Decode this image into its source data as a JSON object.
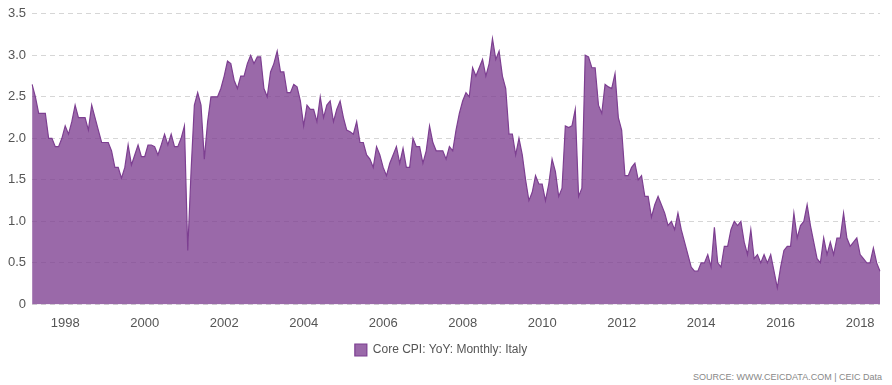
{
  "chart_data": {
    "type": "area",
    "categories": [
      null,
      null,
      null,
      null,
      null,
      null,
      null,
      null,
      null,
      null,
      "1998",
      null,
      null,
      null,
      null,
      null,
      null,
      null,
      null,
      null,
      null,
      null,
      null,
      null,
      null,
      null,
      null,
      null,
      null,
      null,
      null,
      null,
      null,
      null,
      "2000",
      null,
      null,
      null,
      null,
      null,
      null,
      null,
      null,
      null,
      null,
      null,
      null,
      null,
      null,
      null,
      null,
      null,
      null,
      null,
      null,
      null,
      null,
      null,
      "2002",
      null,
      null,
      null,
      null,
      null,
      null,
      null,
      null,
      null,
      null,
      null,
      null,
      null,
      null,
      null,
      null,
      null,
      null,
      null,
      null,
      null,
      null,
      null,
      "2004",
      null,
      null,
      null,
      null,
      null,
      null,
      null,
      null,
      null,
      null,
      null,
      null,
      null,
      null,
      null,
      null,
      null,
      null,
      null,
      null,
      null,
      null,
      null,
      "2006",
      null,
      null,
      null,
      null,
      null,
      null,
      null,
      null,
      null,
      null,
      null,
      null,
      null,
      null,
      null,
      null,
      null,
      null,
      null,
      null,
      null,
      null,
      null,
      "2008",
      null,
      null,
      null,
      null,
      null,
      null,
      null,
      null,
      null,
      null,
      null,
      null,
      null,
      null,
      null,
      null,
      null,
      null,
      null,
      null,
      null,
      null,
      null,
      "2010",
      null,
      null,
      null,
      null,
      null,
      null,
      null,
      null,
      null,
      null,
      null,
      null,
      null,
      null,
      null,
      null,
      null,
      null,
      null,
      null,
      null,
      null,
      null,
      "2012",
      null,
      null,
      null,
      null,
      null,
      null,
      null,
      null,
      null,
      null,
      null,
      null,
      null,
      null,
      null,
      null,
      null,
      null,
      null,
      null,
      null,
      null,
      null,
      "2014",
      null,
      null,
      null,
      null,
      null,
      null,
      null,
      null,
      null,
      null,
      null,
      null,
      null,
      null,
      null,
      null,
      null,
      null,
      null,
      null,
      null,
      null,
      null,
      "2016",
      null,
      null,
      null,
      null,
      null,
      null,
      null,
      null,
      null,
      null,
      null,
      null,
      null,
      null,
      null,
      null,
      null,
      null,
      null,
      null,
      null,
      null,
      null,
      "2018",
      null,
      null,
      null,
      null,
      null,
      null
    ],
    "series": [
      {
        "name": "Core CPI: YoY: Monthly: Italy",
        "color": "#7d3f91",
        "values": [
          2.65,
          2.5,
          2.3,
          2.3,
          2.3,
          2.0,
          2.0,
          1.9,
          1.9,
          2.0,
          2.15,
          2.05,
          2.2,
          2.4,
          2.25,
          2.25,
          2.25,
          2.1,
          2.4,
          2.25,
          2.1,
          1.95,
          1.95,
          1.95,
          1.85,
          1.65,
          1.65,
          1.52,
          1.65,
          1.92,
          1.68,
          1.8,
          1.92,
          1.78,
          1.78,
          1.92,
          1.92,
          1.9,
          1.8,
          1.92,
          2.05,
          1.92,
          2.05,
          1.9,
          1.9,
          2.0,
          2.15,
          0.65,
          1.6,
          2.4,
          2.55,
          2.4,
          1.75,
          2.2,
          2.5,
          2.5,
          2.5,
          2.6,
          2.75,
          2.93,
          2.9,
          2.7,
          2.6,
          2.75,
          2.75,
          2.9,
          3.0,
          2.9,
          2.98,
          2.98,
          2.6,
          2.5,
          2.8,
          2.9,
          3.05,
          2.8,
          2.8,
          2.55,
          2.55,
          2.65,
          2.62,
          2.45,
          2.15,
          2.4,
          2.35,
          2.35,
          2.2,
          2.5,
          2.25,
          2.4,
          2.45,
          2.2,
          2.35,
          2.45,
          2.25,
          2.1,
          2.08,
          2.05,
          2.2,
          1.95,
          1.95,
          1.8,
          1.75,
          1.65,
          1.9,
          1.8,
          1.65,
          1.55,
          1.7,
          1.8,
          1.9,
          1.7,
          1.88,
          1.65,
          1.65,
          2.0,
          1.9,
          1.9,
          1.7,
          1.85,
          2.15,
          1.95,
          1.85,
          1.85,
          1.85,
          1.75,
          1.9,
          1.85,
          2.1,
          2.3,
          2.45,
          2.55,
          2.5,
          2.85,
          2.75,
          2.85,
          2.95,
          2.75,
          2.9,
          3.2,
          2.95,
          3.05,
          2.75,
          2.6,
          2.05,
          2.05,
          1.8,
          2.0,
          1.8,
          1.5,
          1.25,
          1.35,
          1.55,
          1.45,
          1.45,
          1.25,
          1.45,
          1.75,
          1.6,
          1.3,
          1.4,
          2.15,
          2.13,
          2.15,
          2.35,
          1.3,
          1.4,
          3.0,
          2.98,
          2.85,
          2.85,
          2.4,
          2.3,
          2.65,
          2.62,
          2.6,
          2.78,
          2.25,
          2.1,
          1.55,
          1.55,
          1.65,
          1.7,
          1.5,
          1.55,
          1.3,
          1.3,
          1.05,
          1.2,
          1.3,
          1.2,
          1.1,
          0.95,
          1.0,
          0.9,
          1.1,
          0.9,
          0.75,
          0.6,
          0.45,
          0.4,
          0.4,
          0.5,
          0.5,
          0.6,
          0.45,
          0.93,
          0.5,
          0.45,
          0.7,
          0.7,
          0.9,
          1.0,
          0.95,
          1.0,
          0.75,
          0.6,
          0.9,
          0.55,
          0.6,
          0.5,
          0.6,
          0.5,
          0.6,
          0.4,
          0.2,
          0.45,
          0.65,
          0.7,
          0.7,
          1.1,
          0.8,
          0.95,
          1.0,
          1.2,
          0.95,
          0.75,
          0.55,
          0.5,
          0.8,
          0.6,
          0.75,
          0.6,
          0.8,
          0.8,
          1.1,
          0.8,
          0.7,
          0.75,
          0.8,
          0.6,
          0.55,
          0.5,
          0.5,
          0.68,
          0.5,
          0.4
        ]
      }
    ],
    "ylim": [
      0,
      3.5
    ],
    "yticks": [
      0,
      0.5,
      1,
      1.5,
      2,
      2.5,
      3,
      3.5
    ],
    "grid": true,
    "legend": "bottom",
    "annotations": [
      "SOURCE: WWW.CEICDATA.COM | CEIC Data"
    ]
  }
}
